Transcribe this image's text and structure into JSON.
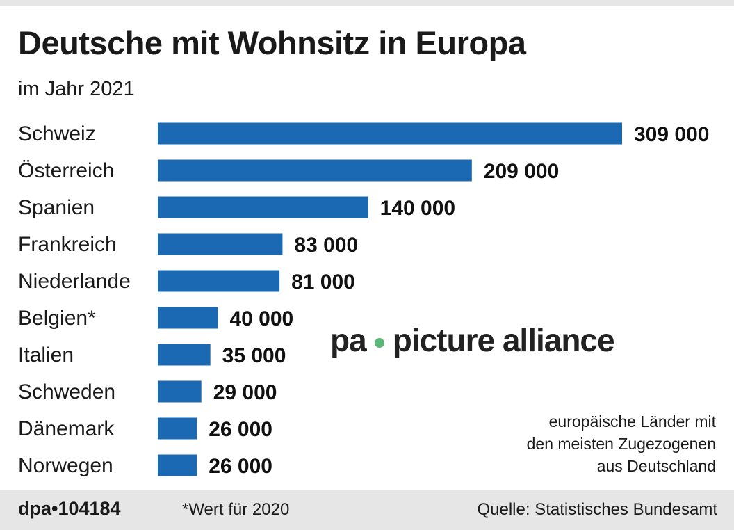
{
  "title": "Deutsche mit Wohnsitz in Europa",
  "subtitle": "im Jahr 2021",
  "note": [
    "europäische Länder mit",
    "den meisten Zugezogenen",
    "aus Deutschland"
  ],
  "footer": {
    "id": "dpa•104184",
    "footnote": "*Wert für 2020",
    "source": "Quelle: Statistisches Bundesamt"
  },
  "watermark": {
    "left": "pa",
    "right": "picture alliance"
  },
  "colors": {
    "bar": "#1b69b3",
    "footer_bg": "#e6e6e6",
    "watermark_dot": "#5bb878"
  },
  "chart_data": {
    "type": "bar",
    "orientation": "horizontal",
    "title": "Deutsche mit Wohnsitz in Europa",
    "subtitle": "im Jahr 2021",
    "categories": [
      "Schweiz",
      "Österreich",
      "Spanien",
      "Frankreich",
      "Niederlande",
      "Belgien*",
      "Italien",
      "Schweden",
      "Dänemark",
      "Norwegen"
    ],
    "values": [
      309000,
      209000,
      140000,
      83000,
      81000,
      40000,
      35000,
      29000,
      26000,
      26000
    ],
    "labels": [
      "309 000",
      "209 000",
      "140 000",
      "83 000",
      "81 000",
      "40 000",
      "35 000",
      "29 000",
      "26 000",
      "26 000"
    ],
    "grid": false
  }
}
